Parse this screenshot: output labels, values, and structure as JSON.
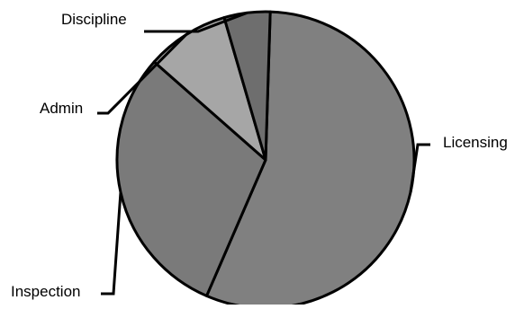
{
  "chart_data": {
    "type": "pie",
    "title": "",
    "categories": [
      "Licensing",
      "Inspection",
      "Admin",
      "Discipline"
    ],
    "values": [
      56,
      30,
      9,
      5
    ],
    "unit": "percent",
    "start_angle_deg": 1.8,
    "direction": "clockwise",
    "legend": "none",
    "labels_placement": "outside-with-leader-lines",
    "colors": {
      "Licensing": "#808080",
      "Inspection": "#7a7a7a",
      "Admin": "#a6a6a6",
      "Discipline": "#6e6e6e",
      "border": "#000000",
      "background": "#ffffff"
    }
  }
}
